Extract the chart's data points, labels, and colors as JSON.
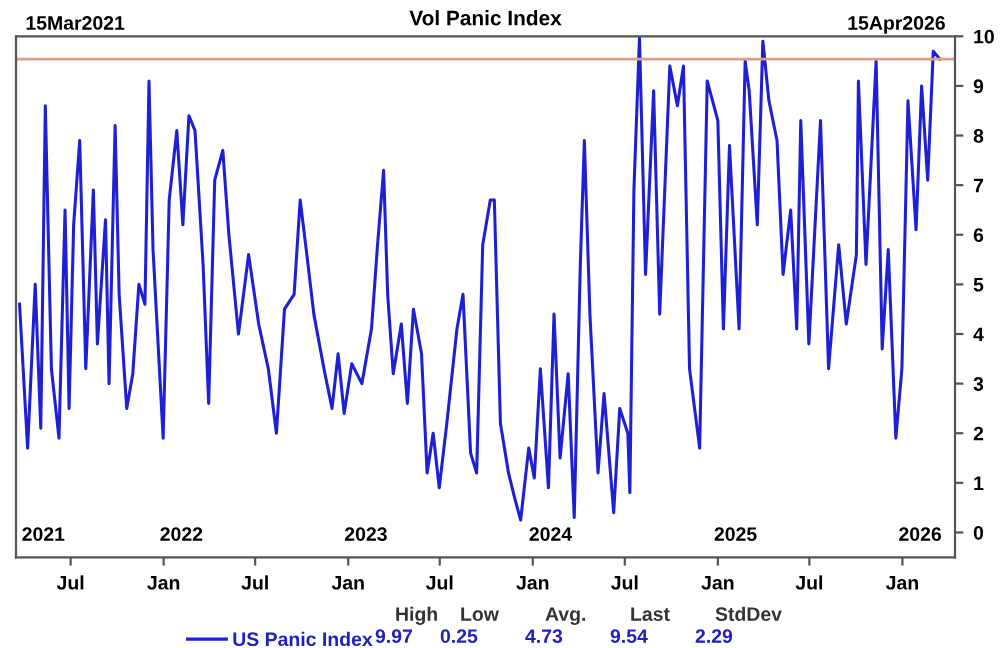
{
  "chart_data": {
    "type": "line",
    "title": "Vol Panic Index",
    "x": [
      "2021-03-22",
      "2021-04-07",
      "2021-04-22",
      "2021-05-03",
      "2021-05-12",
      "2021-05-24",
      "2021-06-08",
      "2021-06-20",
      "2021-06-28",
      "2021-07-07",
      "2021-07-19",
      "2021-07-31",
      "2021-08-15",
      "2021-08-23",
      "2021-09-08",
      "2021-09-15",
      "2021-09-27",
      "2021-10-05",
      "2021-10-20",
      "2021-11-01",
      "2021-11-13",
      "2021-11-25",
      "2021-12-03",
      "2021-12-11",
      "2021-12-31",
      "2022-01-12",
      "2022-01-27",
      "2022-02-08",
      "2022-02-20",
      "2022-03-04",
      "2022-03-20",
      "2022-03-31",
      "2022-04-12",
      "2022-04-28",
      "2022-05-10",
      "2022-05-29",
      "2022-06-18",
      "2022-07-08",
      "2022-07-27",
      "2022-08-12",
      "2022-08-28",
      "2022-09-16",
      "2022-09-28",
      "2022-10-10",
      "2022-10-25",
      "2022-11-14",
      "2022-11-30",
      "2022-12-12",
      "2022-12-24",
      "2023-01-08",
      "2023-01-28",
      "2023-02-16",
      "2023-02-28",
      "2023-03-12",
      "2023-03-20",
      "2023-03-31",
      "2023-04-16",
      "2023-04-28",
      "2023-05-10",
      "2023-05-26",
      "2023-06-06",
      "2023-06-18",
      "2023-06-30",
      "2023-07-15",
      "2023-08-04",
      "2023-08-16",
      "2023-08-31",
      "2023-09-12",
      "2023-09-24",
      "2023-10-09",
      "2023-10-17",
      "2023-10-29",
      "2023-11-14",
      "2023-11-26",
      "2023-12-08",
      "2023-12-24",
      "2024-01-04",
      "2024-01-16",
      "2024-02-01",
      "2024-02-12",
      "2024-02-24",
      "2024-03-11",
      "2024-03-23",
      "2024-04-04",
      "2024-04-12",
      "2024-04-23",
      "2024-05-09",
      "2024-05-21",
      "2024-06-09",
      "2024-06-21",
      "2024-07-07",
      "2024-07-11",
      "2024-07-19",
      "2024-07-30",
      "2024-08-11",
      "2024-08-27",
      "2024-09-08",
      "2024-09-28",
      "2024-10-13",
      "2024-10-25",
      "2024-11-06",
      "2024-11-26",
      "2024-12-11",
      "2025-01-01",
      "2025-01-12",
      "2025-01-24",
      "2025-02-12",
      "2025-02-24",
      "2025-03-04",
      "2025-03-20",
      "2025-03-31",
      "2025-04-12",
      "2025-04-28",
      "2025-05-10",
      "2025-05-25",
      "2025-06-06",
      "2025-06-14",
      "2025-06-30",
      "2025-07-23",
      "2025-08-08",
      "2025-08-28",
      "2025-09-12",
      "2025-10-02",
      "2025-10-06",
      "2025-10-21",
      "2025-11-10",
      "2025-11-22",
      "2025-12-04",
      "2025-12-19",
      "2025-12-31",
      "2026-01-12",
      "2026-01-28",
      "2026-02-08",
      "2026-02-20",
      "2026-03-03",
      "2026-03-16"
    ],
    "series": [
      {
        "name": "US Panic Index",
        "color": "#1f1fd6",
        "values": [
          4.6,
          1.7,
          5.0,
          2.1,
          8.6,
          3.3,
          1.9,
          6.5,
          2.5,
          6.2,
          7.9,
          3.3,
          6.9,
          3.8,
          6.3,
          3.0,
          8.2,
          4.8,
          2.5,
          3.2,
          5.0,
          4.6,
          9.1,
          5.7,
          1.9,
          6.7,
          8.1,
          6.2,
          8.4,
          8.1,
          5.4,
          2.6,
          7.1,
          7.7,
          6.0,
          4.0,
          5.6,
          4.2,
          3.3,
          2.0,
          4.5,
          4.8,
          6.7,
          5.7,
          4.4,
          3.3,
          2.5,
          3.6,
          2.4,
          3.4,
          3.0,
          4.1,
          5.8,
          7.3,
          4.8,
          3.2,
          4.2,
          2.6,
          4.5,
          3.6,
          1.2,
          2.0,
          0.9,
          2.2,
          4.1,
          4.8,
          1.6,
          1.2,
          5.8,
          6.7,
          6.7,
          2.2,
          1.2,
          0.7,
          0.25,
          1.7,
          1.1,
          3.3,
          0.9,
          4.4,
          1.5,
          3.2,
          0.3,
          5.4,
          7.9,
          4.4,
          1.2,
          2.8,
          0.4,
          2.5,
          2.0,
          0.8,
          6.9,
          9.97,
          5.2,
          8.9,
          4.4,
          9.4,
          8.6,
          9.4,
          3.3,
          1.7,
          9.1,
          8.3,
          4.1,
          7.8,
          4.1,
          9.5,
          8.9,
          6.2,
          9.9,
          8.7,
          7.9,
          5.2,
          6.5,
          4.1,
          8.3,
          3.8,
          8.3,
          3.3,
          5.8,
          4.2,
          5.6,
          9.1,
          5.4,
          9.5,
          3.7,
          5.7,
          1.9,
          3.3,
          8.7,
          6.1,
          9.0,
          7.1,
          9.7,
          9.54
        ]
      }
    ],
    "xlim": [
      "2021-03-15",
      "2026-04-15"
    ],
    "xticks": [
      {
        "value": "2021-07-01",
        "label": "Jul"
      },
      {
        "value": "2022-01-01",
        "label": "Jan"
      },
      {
        "value": "2022-07-01",
        "label": "Jul"
      },
      {
        "value": "2023-01-01",
        "label": "Jan"
      },
      {
        "value": "2023-07-01",
        "label": "Jul"
      },
      {
        "value": "2024-01-01",
        "label": "Jan"
      },
      {
        "value": "2024-07-01",
        "label": "Jul"
      },
      {
        "value": "2025-01-01",
        "label": "Jan"
      },
      {
        "value": "2025-07-01",
        "label": "Jul"
      },
      {
        "value": "2026-01-01",
        "label": "Jan"
      }
    ],
    "x2lim": [
      "2021-03-15",
      "2026-04-15"
    ],
    "x2ticks": [
      {
        "value": "2021-05-08",
        "label": "2021"
      },
      {
        "value": "2022-02-05",
        "label": "2022"
      },
      {
        "value": "2023-02-05",
        "label": "2023"
      },
      {
        "value": "2024-02-05",
        "label": "2024"
      },
      {
        "value": "2025-02-05",
        "label": "2025"
      },
      {
        "value": "2026-02-05",
        "label": "2026"
      }
    ],
    "ylim": [
      -0.5,
      10
    ],
    "yticks": [
      0,
      1,
      2,
      3,
      4,
      5,
      6,
      7,
      8,
      9,
      10
    ],
    "ref_lines": [
      {
        "axis": "y",
        "value": 9.54,
        "color": "#d9a08c"
      }
    ],
    "annotations": [
      "15Mar2021",
      "15Apr2026",
      "High",
      "Low",
      "Avg.",
      "Last",
      "StdDev",
      "9.97",
      "0.25",
      "4.73",
      "9.54",
      "2.29"
    ],
    "grid": false,
    "legend": "bottom",
    "marker": "none",
    "line_style": "solid"
  }
}
